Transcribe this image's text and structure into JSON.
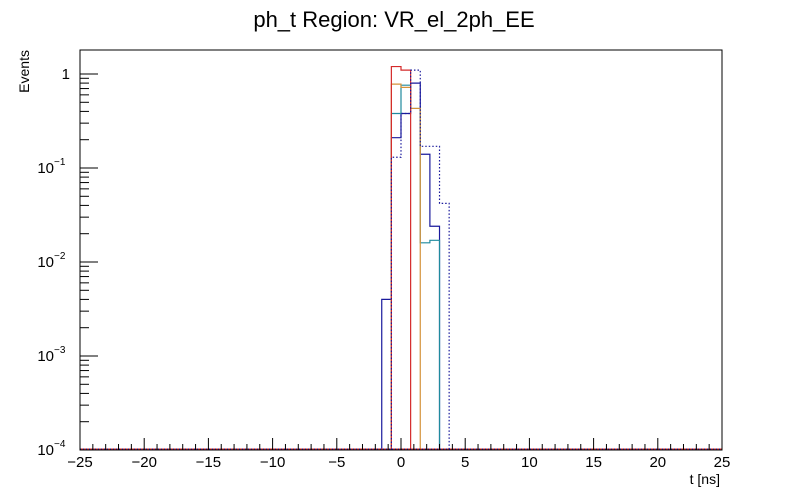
{
  "chart_data": {
    "type": "histogram",
    "title": "ph_t Region: VR_el_2ph_EE",
    "xlabel": "t [ns]",
    "ylabel": "Events",
    "xlim": [
      -25,
      25
    ],
    "ylim": [
      0.0001,
      1.8
    ],
    "yscale": "log",
    "grid": false,
    "x_ticks": [
      -25,
      -20,
      -15,
      -10,
      -5,
      0,
      5,
      10,
      15,
      20,
      25
    ],
    "y_ticks": [
      {
        "value": 0.0001,
        "base": "10",
        "exp": "−4"
      },
      {
        "value": 0.001,
        "base": "10",
        "exp": "−3"
      },
      {
        "value": 0.01,
        "base": "10",
        "exp": "−2"
      },
      {
        "value": 0.1,
        "base": "10",
        "exp": "−1"
      },
      {
        "value": 1,
        "base": "1",
        "exp": ""
      }
    ],
    "series": [
      {
        "color": "#1a1a9c",
        "style": "solid",
        "bins": [
          {
            "x0": -1.5,
            "x1": -0.75,
            "y": 0.004
          },
          {
            "x0": -0.75,
            "x1": 0.0,
            "y": 0.21
          },
          {
            "x0": 0.0,
            "x1": 0.75,
            "y": 0.38
          },
          {
            "x0": 0.75,
            "x1": 1.5,
            "y": 0.8
          },
          {
            "x0": 1.5,
            "x1": 2.25,
            "y": 0.14
          },
          {
            "x0": 2.25,
            "x1": 3.0,
            "y": 0.024
          }
        ]
      },
      {
        "color": "#1f8a9e",
        "style": "solid",
        "bins": [
          {
            "x0": -0.75,
            "x1": 0.0,
            "y": 0.38
          },
          {
            "x0": 0.0,
            "x1": 0.75,
            "y": 0.76
          },
          {
            "x0": 0.75,
            "x1": 1.5,
            "y": 0.43
          },
          {
            "x0": 1.5,
            "x1": 2.25,
            "y": 0.016
          },
          {
            "x0": 2.25,
            "x1": 3.0,
            "y": 0.017
          }
        ]
      },
      {
        "color": "#d4923a",
        "style": "solid",
        "bins": [
          {
            "x0": -0.75,
            "x1": 0.0,
            "y": 0.78
          },
          {
            "x0": 0.0,
            "x1": 0.75,
            "y": 0.72
          },
          {
            "x0": 0.75,
            "x1": 1.5,
            "y": 0.43
          }
        ]
      },
      {
        "color": "#d42a2a",
        "style": "solid",
        "bins": [
          {
            "x0": -0.75,
            "x1": 0.0,
            "y": 1.2
          },
          {
            "x0": 0.0,
            "x1": 0.75,
            "y": 1.1
          }
        ]
      },
      {
        "color": "#1a1a9c",
        "style": "dotted",
        "bins": [
          {
            "x0": -0.75,
            "x1": 0.0,
            "y": 0.13
          },
          {
            "x0": 0.0,
            "x1": 0.75,
            "y": 0.38
          },
          {
            "x0": 0.75,
            "x1": 1.5,
            "y": 1.1
          },
          {
            "x0": 1.5,
            "x1": 2.25,
            "y": 0.17
          },
          {
            "x0": 2.25,
            "x1": 3.0,
            "y": 0.17
          },
          {
            "x0": 3.0,
            "x1": 3.75,
            "y": 0.042
          }
        ]
      }
    ]
  }
}
